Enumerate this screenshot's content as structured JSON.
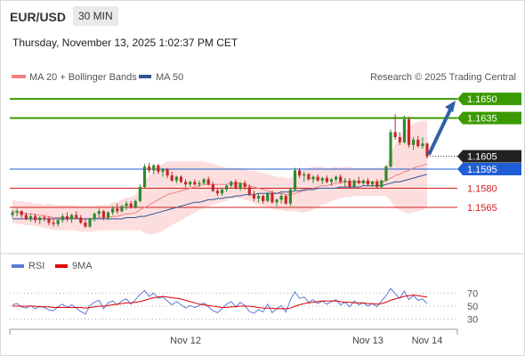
{
  "header": {
    "symbol": "EUR/USD",
    "interval": "30 MIN",
    "timestamp": "Thursday, November 13, 2025 1:02:37 PM CET"
  },
  "legend": {
    "ma20_label": "MA 20 + Bollinger Bands",
    "ma50_label": "MA 50",
    "ma20_color": "#f08080",
    "ma50_color": "#2f5597",
    "copyright": "Research © 2025 Trading Central"
  },
  "rsi_legend": {
    "rsi_label": "RSI",
    "ma_label": "9MA",
    "rsi_color": "#5b7bd5",
    "ma_color": "#e00000"
  },
  "chart_data": [
    {
      "type": "candlestick",
      "title": "EUR/USD",
      "interval": "30 MIN",
      "x_ticks": [
        "Nov 12",
        "Nov 13",
        "Nov 14"
      ],
      "levels": [
        {
          "value": 1.165,
          "label": "1.1650",
          "kind": "target",
          "color": "#3a9a00"
        },
        {
          "value": 1.1635,
          "label": "1.1635",
          "kind": "target",
          "color": "#3a9a00"
        },
        {
          "value": 1.1605,
          "label": "1.1605",
          "kind": "last-price",
          "color": "#222222"
        },
        {
          "value": 1.1595,
          "label": "1.1595",
          "kind": "pivot",
          "color": "#1f5fd6"
        },
        {
          "value": 1.158,
          "label": "1.1580",
          "kind": "support",
          "color": "#d02020"
        },
        {
          "value": 1.1565,
          "label": "1.1565",
          "kind": "support",
          "color": "#d02020"
        }
      ],
      "ohlc": [
        [
          1.1559,
          1.1563,
          1.1557,
          1.1561
        ],
        [
          1.1561,
          1.1564,
          1.1558,
          1.1562
        ],
        [
          1.1562,
          1.1563,
          1.1557,
          1.1559
        ],
        [
          1.1559,
          1.1561,
          1.1555,
          1.1556
        ],
        [
          1.1556,
          1.156,
          1.1554,
          1.1558
        ],
        [
          1.1558,
          1.156,
          1.1553,
          1.1555
        ],
        [
          1.1555,
          1.1558,
          1.1552,
          1.1557
        ],
        [
          1.1557,
          1.1559,
          1.1554,
          1.1556
        ],
        [
          1.1556,
          1.1558,
          1.1551,
          1.1553
        ],
        [
          1.1553,
          1.1556,
          1.155,
          1.1552
        ],
        [
          1.1552,
          1.1557,
          1.155,
          1.1555
        ],
        [
          1.1555,
          1.156,
          1.1553,
          1.1558
        ],
        [
          1.1558,
          1.1561,
          1.1554,
          1.1556
        ],
        [
          1.1556,
          1.156,
          1.1553,
          1.1559
        ],
        [
          1.1559,
          1.1562,
          1.1556,
          1.1557
        ],
        [
          1.1557,
          1.1559,
          1.1552,
          1.1553
        ],
        [
          1.1553,
          1.1556,
          1.1549,
          1.155
        ],
        [
          1.155,
          1.1557,
          1.1549,
          1.1556
        ],
        [
          1.1556,
          1.1561,
          1.1554,
          1.156
        ],
        [
          1.156,
          1.1564,
          1.1557,
          1.1562
        ],
        [
          1.1562,
          1.1563,
          1.1555,
          1.1557
        ],
        [
          1.1557,
          1.1562,
          1.1555,
          1.1561
        ],
        [
          1.1561,
          1.1566,
          1.1559,
          1.1564
        ],
        [
          1.1564,
          1.1568,
          1.156,
          1.1562
        ],
        [
          1.1562,
          1.1567,
          1.1561,
          1.1566
        ],
        [
          1.1566,
          1.157,
          1.1563,
          1.1568
        ],
        [
          1.1568,
          1.157,
          1.1564,
          1.1565
        ],
        [
          1.1565,
          1.1571,
          1.1564,
          1.157
        ],
        [
          1.157,
          1.1583,
          1.1569,
          1.1581
        ],
        [
          1.1581,
          1.1599,
          1.158,
          1.1597
        ],
        [
          1.1597,
          1.16,
          1.1592,
          1.1594
        ],
        [
          1.1594,
          1.1599,
          1.1591,
          1.1598
        ],
        [
          1.1598,
          1.1599,
          1.1591,
          1.1593
        ],
        [
          1.1593,
          1.1596,
          1.1589,
          1.1595
        ],
        [
          1.1595,
          1.1596,
          1.1588,
          1.159
        ],
        [
          1.159,
          1.1593,
          1.1585,
          1.1586
        ],
        [
          1.1586,
          1.159,
          1.1584,
          1.1589
        ],
        [
          1.1589,
          1.159,
          1.1584,
          1.1585
        ],
        [
          1.1585,
          1.1587,
          1.1581,
          1.1583
        ],
        [
          1.1583,
          1.1586,
          1.1581,
          1.1585
        ],
        [
          1.1585,
          1.1587,
          1.1582,
          1.1583
        ],
        [
          1.1583,
          1.1586,
          1.1581,
          1.1584
        ],
        [
          1.1584,
          1.1588,
          1.1583,
          1.1587
        ],
        [
          1.1587,
          1.1589,
          1.1582,
          1.1583
        ],
        [
          1.1583,
          1.1585,
          1.1577,
          1.1578
        ],
        [
          1.1578,
          1.158,
          1.1574,
          1.1576
        ],
        [
          1.1576,
          1.158,
          1.1574,
          1.1579
        ],
        [
          1.1579,
          1.1583,
          1.1577,
          1.1582
        ],
        [
          1.1582,
          1.1586,
          1.158,
          1.1585
        ],
        [
          1.1585,
          1.1587,
          1.1579,
          1.158
        ],
        [
          1.158,
          1.1585,
          1.1578,
          1.1584
        ],
        [
          1.1584,
          1.1586,
          1.1579,
          1.1581
        ],
        [
          1.1581,
          1.1583,
          1.1574,
          1.1575
        ],
        [
          1.1575,
          1.1578,
          1.157,
          1.1572
        ],
        [
          1.1572,
          1.1576,
          1.1569,
          1.1574
        ],
        [
          1.1574,
          1.1575,
          1.1568,
          1.157
        ],
        [
          1.157,
          1.1577,
          1.1569,
          1.1576
        ],
        [
          1.1576,
          1.1578,
          1.1568,
          1.1569
        ],
        [
          1.1569,
          1.1572,
          1.1566,
          1.1571
        ],
        [
          1.1571,
          1.1576,
          1.1568,
          1.1574
        ],
        [
          1.1574,
          1.1575,
          1.1567,
          1.1568
        ],
        [
          1.1568,
          1.158,
          1.1566,
          1.1579
        ],
        [
          1.1579,
          1.1596,
          1.1578,
          1.1594
        ],
        [
          1.1594,
          1.1596,
          1.1588,
          1.159
        ],
        [
          1.159,
          1.1593,
          1.1585,
          1.1591
        ],
        [
          1.1591,
          1.1592,
          1.1586,
          1.1587
        ],
        [
          1.1587,
          1.159,
          1.1584,
          1.1589
        ],
        [
          1.1589,
          1.1591,
          1.1585,
          1.1586
        ],
        [
          1.1586,
          1.1589,
          1.1583,
          1.1588
        ],
        [
          1.1588,
          1.159,
          1.1584,
          1.1585
        ],
        [
          1.1585,
          1.1588,
          1.1582,
          1.1587
        ],
        [
          1.1587,
          1.159,
          1.1585,
          1.1589
        ],
        [
          1.1589,
          1.1591,
          1.1584,
          1.1585
        ],
        [
          1.1585,
          1.1588,
          1.1581,
          1.1586
        ],
        [
          1.1586,
          1.1588,
          1.158,
          1.1581
        ],
        [
          1.1581,
          1.1587,
          1.158,
          1.1586
        ],
        [
          1.1586,
          1.1589,
          1.1583,
          1.1584
        ],
        [
          1.1584,
          1.1587,
          1.1582,
          1.1586
        ],
        [
          1.1586,
          1.1588,
          1.1582,
          1.1583
        ],
        [
          1.1583,
          1.1586,
          1.1581,
          1.1585
        ],
        [
          1.1585,
          1.1587,
          1.158,
          1.1581
        ],
        [
          1.1581,
          1.1587,
          1.158,
          1.1586
        ],
        [
          1.1586,
          1.1598,
          1.1585,
          1.1597
        ],
        [
          1.1597,
          1.1626,
          1.1596,
          1.1624
        ],
        [
          1.1624,
          1.1638,
          1.1618,
          1.162
        ],
        [
          1.162,
          1.1624,
          1.1614,
          1.1616
        ],
        [
          1.1616,
          1.1637,
          1.1615,
          1.1634
        ],
        [
          1.1634,
          1.1636,
          1.1612,
          1.1614
        ],
        [
          1.1614,
          1.162,
          1.161,
          1.1618
        ],
        [
          1.1618,
          1.1621,
          1.1612,
          1.1613
        ],
        [
          1.1613,
          1.162,
          1.1611,
          1.1615
        ],
        [
          1.1615,
          1.1616,
          1.1603,
          1.1605
        ]
      ],
      "ma20": [
        1.1562,
        1.1561,
        1.1561,
        1.156,
        1.156,
        1.1559,
        1.1559,
        1.1558,
        1.1558,
        1.1557,
        1.1557,
        1.1557,
        1.1557,
        1.1557,
        1.1557,
        1.1556,
        1.1556,
        1.1556,
        1.1556,
        1.1557,
        1.1557,
        1.1557,
        1.1558,
        1.1558,
        1.1559,
        1.156,
        1.156,
        1.1561,
        1.1563,
        1.1565,
        1.1567,
        1.1569,
        1.1571,
        1.1573,
        1.1575,
        1.1576,
        1.1577,
        1.1578,
        1.1579,
        1.158,
        1.1581,
        1.1582,
        1.1583,
        1.1583,
        1.1583,
        1.1583,
        1.1583,
        1.1583,
        1.1584,
        1.1584,
        1.1584,
        1.1583,
        1.1582,
        1.1581,
        1.158,
        1.1579,
        1.1578,
        1.1577,
        1.1576,
        1.1576,
        1.1575,
        1.1575,
        1.1576,
        1.1577,
        1.1578,
        1.1579,
        1.158,
        1.1581,
        1.1582,
        1.1582,
        1.1583,
        1.1584,
        1.1584,
        1.1585,
        1.1585,
        1.1585,
        1.1585,
        1.1585,
        1.1585,
        1.1585,
        1.1585,
        1.1585,
        1.1586,
        1.1588,
        1.159,
        1.1591,
        1.1593,
        1.1594,
        1.1596,
        1.1597,
        1.1598,
        1.1599
      ],
      "ma50": [
        1.1556,
        1.1556,
        1.1556,
        1.1556,
        1.1556,
        1.1556,
        1.1556,
        1.1556,
        1.1556,
        1.1556,
        1.1556,
        1.1556,
        1.1556,
        1.1556,
        1.1556,
        1.1556,
        1.1556,
        1.1556,
        1.1556,
        1.1556,
        1.1556,
        1.1556,
        1.1556,
        1.1556,
        1.1556,
        1.1557,
        1.1557,
        1.1557,
        1.1558,
        1.1558,
        1.1559,
        1.156,
        1.1561,
        1.1562,
        1.1563,
        1.1564,
        1.1565,
        1.1566,
        1.1567,
        1.1568,
        1.1569,
        1.1569,
        1.157,
        1.1571,
        1.1571,
        1.1572,
        1.1572,
        1.1573,
        1.1573,
        1.1574,
        1.1574,
        1.1575,
        1.1575,
        1.1575,
        1.1576,
        1.1576,
        1.1576,
        1.1576,
        1.1576,
        1.1577,
        1.1577,
        1.1577,
        1.1578,
        1.1578,
        1.1579,
        1.1579,
        1.1579,
        1.158,
        1.158,
        1.158,
        1.158,
        1.158,
        1.1581,
        1.1581,
        1.1581,
        1.1581,
        1.1581,
        1.1582,
        1.1582,
        1.1582,
        1.1582,
        1.1582,
        1.1583,
        1.1584,
        1.1585,
        1.1585,
        1.1586,
        1.1587,
        1.1588,
        1.1589,
        1.159,
        1.1591
      ],
      "bb_width": [
        0.0009,
        0.0009,
        0.0009,
        0.0009,
        0.0009,
        0.0009,
        0.0009,
        0.0009,
        0.001,
        0.001,
        0.001,
        0.001,
        0.001,
        0.001,
        0.001,
        0.001,
        0.001,
        0.001,
        0.001,
        0.001,
        0.001,
        0.001,
        0.0011,
        0.0011,
        0.0012,
        0.0013,
        0.0013,
        0.0014,
        0.0016,
        0.002,
        0.0023,
        0.0025,
        0.0026,
        0.0026,
        0.0026,
        0.0025,
        0.0024,
        0.0023,
        0.0022,
        0.0021,
        0.002,
        0.0019,
        0.0018,
        0.0017,
        0.0016,
        0.0015,
        0.0014,
        0.0013,
        0.0012,
        0.0012,
        0.0012,
        0.0012,
        0.0012,
        0.0013,
        0.0013,
        0.0013,
        0.0013,
        0.0013,
        0.0013,
        0.0013,
        0.0013,
        0.0013,
        0.0014,
        0.0016,
        0.0017,
        0.0017,
        0.0017,
        0.0016,
        0.0015,
        0.0014,
        0.0013,
        0.0013,
        0.0012,
        0.0012,
        0.0012,
        0.0011,
        0.0011,
        0.0011,
        0.0011,
        0.0011,
        0.0011,
        0.0011,
        0.0012,
        0.0018,
        0.0025,
        0.0028,
        0.0032,
        0.0034,
        0.0035,
        0.0035,
        0.0035,
        0.0034
      ],
      "ylim": [
        1.1542,
        1.1655
      ],
      "grid": false,
      "legend_placement": "top-left"
    },
    {
      "type": "line",
      "title": "RSI",
      "ylim": [
        20,
        80
      ],
      "y_ticks": [
        70,
        50,
        30
      ],
      "series": [
        {
          "name": "RSI",
          "color": "#5b7bd5",
          "values": [
            52,
            54,
            49,
            47,
            51,
            46,
            50,
            48,
            44,
            43,
            49,
            53,
            48,
            52,
            47,
            42,
            38,
            51,
            56,
            59,
            46,
            55,
            58,
            52,
            58,
            61,
            53,
            60,
            68,
            74,
            65,
            70,
            62,
            64,
            58,
            52,
            57,
            52,
            47,
            51,
            48,
            51,
            55,
            49,
            43,
            40,
            46,
            53,
            57,
            49,
            56,
            51,
            42,
            39,
            45,
            41,
            53,
            40,
            46,
            51,
            41,
            60,
            72,
            62,
            64,
            56,
            60,
            54,
            58,
            53,
            57,
            60,
            52,
            56,
            49,
            58,
            52,
            55,
            50,
            54,
            49,
            58,
            66,
            77,
            69,
            62,
            73,
            60,
            66,
            59,
            61,
            54
          ]
        },
        {
          "name": "9MA",
          "color": "#e00000",
          "values": [
            50,
            50,
            50,
            50,
            50,
            50,
            49,
            49,
            49,
            48,
            48,
            48,
            48,
            48,
            48,
            48,
            47,
            48,
            49,
            50,
            50,
            51,
            52,
            53,
            54,
            55,
            55,
            56,
            57,
            59,
            61,
            63,
            64,
            65,
            64,
            63,
            62,
            61,
            59,
            57,
            55,
            53,
            52,
            51,
            50,
            49,
            48,
            48,
            49,
            49,
            50,
            50,
            50,
            49,
            48,
            47,
            47,
            47,
            46,
            46,
            46,
            47,
            50,
            52,
            54,
            55,
            56,
            57,
            58,
            58,
            58,
            58,
            57,
            56,
            56,
            55,
            55,
            55,
            54,
            54,
            53,
            54,
            56,
            59,
            61,
            63,
            65,
            66,
            67,
            66,
            65,
            64
          ]
        }
      ]
    }
  ]
}
